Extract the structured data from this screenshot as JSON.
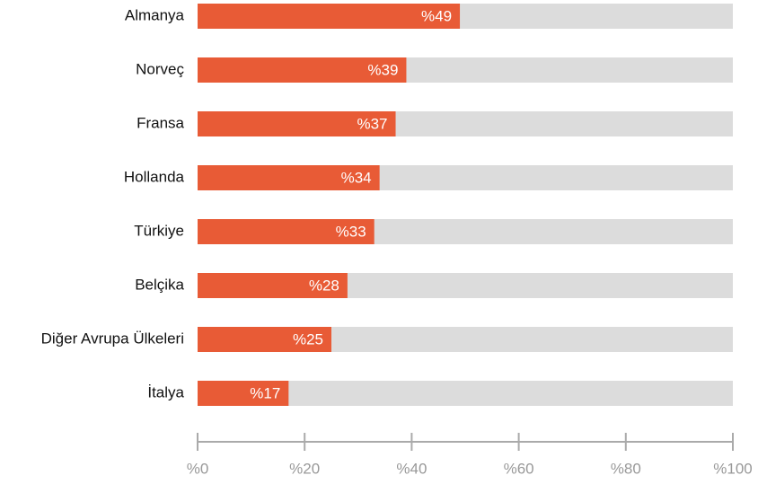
{
  "chart_data": {
    "type": "bar",
    "orientation": "horizontal",
    "categories": [
      "Almanya",
      "Norveç",
      "Fransa",
      "Hollanda",
      "Türkiye",
      "Belçika",
      "Diğer Avrupa Ülkeleri",
      "İtalya"
    ],
    "values": [
      49,
      39,
      37,
      34,
      33,
      28,
      25,
      17
    ],
    "value_labels": [
      "%49",
      "%39",
      "%37",
      "%34",
      "%33",
      "%28",
      "%25",
      "%17"
    ],
    "color": "#e85b36",
    "track_color": "#dcdcdc",
    "xlim": [
      0,
      100
    ],
    "xticks": [
      {
        "value": 0,
        "label": "%0"
      },
      {
        "value": 20,
        "label": "%20"
      },
      {
        "value": 40,
        "label": "%40"
      },
      {
        "value": 60,
        "label": "%60"
      },
      {
        "value": 80,
        "label": "%80"
      },
      {
        "value": 100,
        "label": "%100"
      }
    ]
  }
}
